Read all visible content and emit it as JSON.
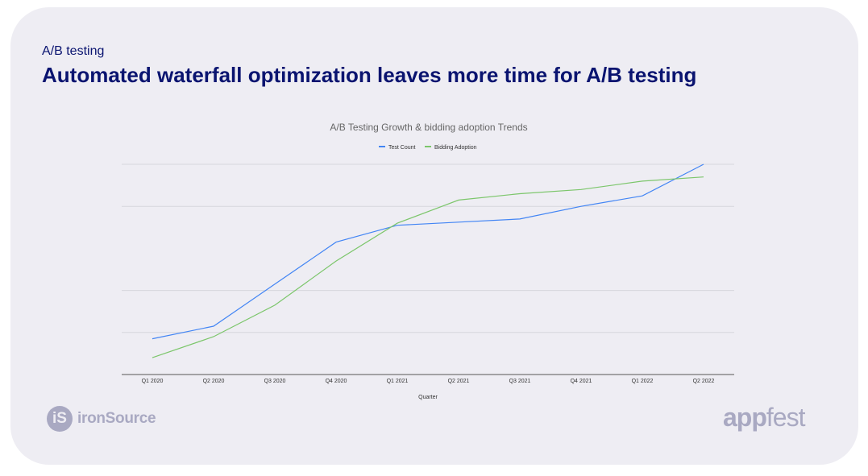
{
  "slide": {
    "eyebrow": "A/B testing",
    "headline": "Automated waterfall optimization leaves more time for A/B testing"
  },
  "chart_data": {
    "type": "line",
    "title": "A/B Testing Growth & bidding adoption Trends",
    "xlabel": "Quarter",
    "ylabel": "",
    "categories": [
      "Q1 2020",
      "Q2 2020",
      "Q3 2020",
      "Q4 2020",
      "Q1 2021",
      "Q2 2021",
      "Q3 2021",
      "Q4 2021",
      "Q1 2022",
      "Q2 2022"
    ],
    "series": [
      {
        "name": "Test Count",
        "color": "#4285f4",
        "values": [
          17,
          23,
          43,
          63,
          71,
          72.5,
          74,
          80,
          85,
          100
        ]
      },
      {
        "name": "Bidding Adoption",
        "color": "#7cc66b",
        "values": [
          8,
          18,
          33,
          54,
          72,
          83,
          86,
          88,
          92,
          94
        ]
      }
    ],
    "ylim": [
      0,
      100
    ],
    "grid": true,
    "legend_position": "top"
  },
  "logos": {
    "ironsource_badge": "iS",
    "ironsource_text": "ironSource",
    "appfest_app": "app",
    "appfest_fest": "fest"
  }
}
